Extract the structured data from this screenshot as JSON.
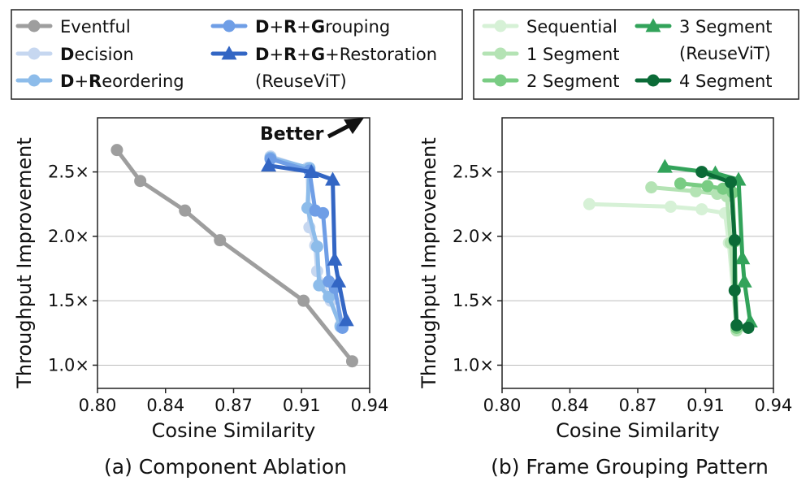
{
  "chart_data": [
    {
      "type": "line",
      "caption": "(a) Component Ablation",
      "xlabel": "Cosine Similarity",
      "ylabel": "Throughput Improvement",
      "xlim": [
        0.8,
        0.94
      ],
      "ylim": [
        0.82,
        2.92
      ],
      "xticks": [
        "0.80",
        "0.84",
        "0.87",
        "0.91",
        "0.94"
      ],
      "xtick_values": [
        0.8,
        0.835,
        0.87,
        0.905,
        0.94
      ],
      "yticks": [
        "1.0×",
        "1.5×",
        "2.0×",
        "2.5×"
      ],
      "ytick_values": [
        1.0,
        1.5,
        2.0,
        2.5
      ],
      "annotation": "Better",
      "legend": [
        {
          "segments": [
            {
              "text": "Eventful",
              "bold": false
            }
          ]
        },
        {
          "segments": [
            {
              "text": "D",
              "bold": true
            },
            {
              "text": "ecision",
              "bold": false
            }
          ]
        },
        {
          "segments": [
            {
              "text": "D",
              "bold": true
            },
            {
              "text": "+",
              "bold": false
            },
            {
              "text": "R",
              "bold": true
            },
            {
              "text": "eordering",
              "bold": false
            }
          ]
        },
        {
          "segments": [
            {
              "text": "D",
              "bold": true
            },
            {
              "text": "+",
              "bold": false
            },
            {
              "text": "R",
              "bold": true
            },
            {
              "text": "+",
              "bold": false
            },
            {
              "text": "G",
              "bold": true
            },
            {
              "text": "rouping",
              "bold": false
            }
          ]
        },
        {
          "segments": [
            {
              "text": "D",
              "bold": true
            },
            {
              "text": "+",
              "bold": false
            },
            {
              "text": "R",
              "bold": true
            },
            {
              "text": "+",
              "bold": false
            },
            {
              "text": "G",
              "bold": true
            },
            {
              "text": "+",
              "bold": false
            },
            {
              "text": "Restoration",
              "bold": false
            }
          ],
          "line2": "(ReuseViT)"
        }
      ],
      "series": [
        {
          "name": "Eventful",
          "color": "#9e9e9e",
          "marker": "circle",
          "x": [
            0.81,
            0.822,
            0.845,
            0.863,
            0.906,
            0.931
          ],
          "y": [
            2.67,
            2.43,
            2.2,
            1.97,
            1.5,
            1.03
          ]
        },
        {
          "name": "Decision",
          "color": "#c6d7f0",
          "marker": "circle",
          "x": [
            0.889,
            0.908,
            0.909,
            0.912,
            0.913,
            0.92,
            0.925
          ],
          "y": [
            2.62,
            2.53,
            2.07,
            1.93,
            1.73,
            1.5,
            1.31
          ]
        },
        {
          "name": "D+Reordering",
          "color": "#8dbcea",
          "marker": "circle",
          "x": [
            0.889,
            0.909,
            0.908,
            0.913,
            0.914,
            0.919,
            0.925
          ],
          "y": [
            2.61,
            2.53,
            2.22,
            1.92,
            1.62,
            1.53,
            1.3
          ]
        },
        {
          "name": "D+R+Grouping",
          "color": "#6f9ee6",
          "marker": "circle",
          "x": [
            0.889,
            0.909,
            0.912,
            0.916,
            0.919,
            0.922,
            0.926
          ],
          "y": [
            2.6,
            2.51,
            2.2,
            2.18,
            1.65,
            1.6,
            1.29
          ]
        },
        {
          "name": "D+R+G+Restoration (ReuseViT)",
          "color": "#3366c4",
          "marker": "triangle",
          "x": [
            0.888,
            0.91,
            0.921,
            0.922,
            0.924,
            0.928
          ],
          "y": [
            2.55,
            2.5,
            2.44,
            1.82,
            1.65,
            1.35
          ]
        }
      ]
    },
    {
      "type": "line",
      "caption": "(b) Frame Grouping Pattern",
      "xlabel": "Cosine Similarity",
      "ylabel": "Throughput Improvement",
      "xlim": [
        0.8,
        0.94
      ],
      "ylim": [
        0.82,
        2.92
      ],
      "xticks": [
        "0.80",
        "0.84",
        "0.87",
        "0.91",
        "0.94"
      ],
      "xtick_values": [
        0.8,
        0.835,
        0.87,
        0.905,
        0.94
      ],
      "yticks": [
        "1.0×",
        "1.5×",
        "2.0×",
        "2.5×"
      ],
      "ytick_values": [
        1.0,
        1.5,
        2.0,
        2.5
      ],
      "legend": [
        {
          "segments": [
            {
              "text": "Sequential",
              "bold": false
            }
          ]
        },
        {
          "segments": [
            {
              "text": "1 Segment",
              "bold": false
            }
          ]
        },
        {
          "segments": [
            {
              "text": "2 Segment",
              "bold": false
            }
          ]
        },
        {
          "segments": [
            {
              "text": "3 Segment",
              "bold": false
            }
          ],
          "line2": "(ReuseViT)"
        },
        {
          "segments": [
            {
              "text": "4 Segment",
              "bold": false
            }
          ]
        }
      ],
      "series": [
        {
          "name": "Sequential",
          "color": "#d6f1d6",
          "marker": "circle",
          "x": [
            0.845,
            0.887,
            0.903,
            0.915,
            0.917,
            0.921
          ],
          "y": [
            2.25,
            2.23,
            2.21,
            2.18,
            1.95,
            1.27
          ]
        },
        {
          "name": "1 Segment",
          "color": "#b4e3b4",
          "marker": "circle",
          "x": [
            0.877,
            0.9,
            0.911,
            0.916,
            0.918,
            0.921
          ],
          "y": [
            2.38,
            2.35,
            2.33,
            2.31,
            1.95,
            1.27
          ]
        },
        {
          "name": "2 Segment",
          "color": "#79cc83",
          "marker": "circle",
          "x": [
            0.892,
            0.906,
            0.914,
            0.919,
            0.92,
            0.921
          ],
          "y": [
            2.41,
            2.39,
            2.37,
            2.34,
            1.96,
            1.29
          ]
        },
        {
          "name": "3 Segment (ReuseViT)",
          "color": "#32a35a",
          "marker": "triangle",
          "x": [
            0.884,
            0.91,
            0.922,
            0.924,
            0.925,
            0.928
          ],
          "y": [
            2.54,
            2.49,
            2.44,
            1.83,
            1.65,
            1.34
          ]
        },
        {
          "name": "4 Segment",
          "color": "#0b6b37",
          "marker": "circle",
          "x": [
            0.903,
            0.918,
            0.92,
            0.92,
            0.921,
            0.927
          ],
          "y": [
            2.5,
            2.42,
            1.97,
            1.58,
            1.31,
            1.29
          ]
        }
      ]
    }
  ]
}
